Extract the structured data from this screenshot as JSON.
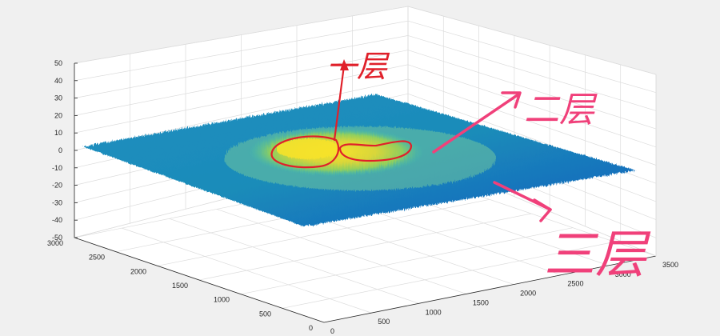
{
  "chart_data": {
    "type": "surface",
    "title": "",
    "xlabel": "",
    "ylabel": "",
    "zlabel": "",
    "xlim": [
      0,
      3500
    ],
    "ylim": [
      0,
      3000
    ],
    "zlim": [
      -50,
      50
    ],
    "x_ticks": [
      "0",
      "500",
      "1000",
      "1500",
      "2000",
      "2500",
      "3000",
      "3500"
    ],
    "y_ticks": [
      "0",
      "500",
      "1000",
      "1500",
      "2000",
      "2500",
      "3000"
    ],
    "z_ticks": [
      "50",
      "40",
      "30",
      "20",
      "10",
      "0",
      "-10",
      "-20",
      "-30",
      "-40",
      "-50"
    ],
    "grid": true,
    "colormap": "parula",
    "colors": {
      "low": "#1f6fd6",
      "mid": "#29b6c8",
      "high": "#f2df2e",
      "background": "#f0f0f0",
      "axes_face": "#ffffff"
    },
    "surface": {
      "baseline_z": -5,
      "peak_z": 8,
      "description_regions": [
        {
          "name": "layer-1",
          "level": "highest",
          "color": "yellow"
        },
        {
          "name": "layer-2",
          "level": "middle",
          "color": "green-yellow"
        },
        {
          "name": "layer-3",
          "level": "lowest",
          "color": "blue"
        }
      ]
    }
  },
  "annotations": {
    "label_1": "一层",
    "label_2": "二层",
    "label_3": "三层",
    "colors": {
      "red": "#e0202a",
      "pink": "#f0407a"
    }
  }
}
